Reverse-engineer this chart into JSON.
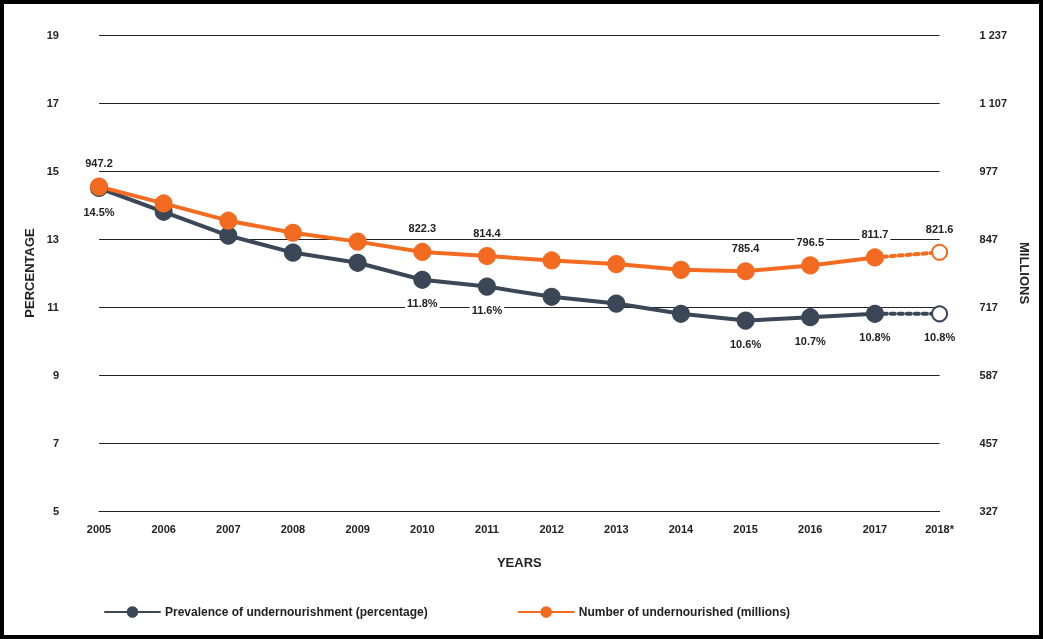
{
  "chart_data": {
    "type": "line",
    "xlabel": "YEARS",
    "ylabel": "PERCENTAGE",
    "y2label": "MILLIONS",
    "categories": [
      "2005",
      "2006",
      "2007",
      "2008",
      "2009",
      "2010",
      "2011",
      "2012",
      "2013",
      "2014",
      "2015",
      "2016",
      "2017",
      "2018*"
    ],
    "series": [
      {
        "name": "Prevalence of undernourishment (percentage)",
        "color": "#3b4657",
        "axis": "y",
        "values": [
          14.5,
          13.8,
          13.1,
          12.6,
          12.3,
          11.8,
          11.6,
          11.3,
          11.1,
          10.8,
          10.6,
          10.7,
          10.8,
          null
        ],
        "value_labels": [
          "14.5%",
          null,
          null,
          null,
          null,
          "11.8%",
          "11.6%",
          null,
          null,
          null,
          "10.6%",
          "10.7%",
          "10.8%",
          null
        ]
      },
      {
        "name": "Number of undernourished (millions)",
        "color": "#f26b21",
        "axis": "y2",
        "values": [
          947.2,
          915,
          882,
          859,
          842,
          822.3,
          814.4,
          806,
          799,
          788,
          785.4,
          796.5,
          811.7,
          null
        ],
        "value_labels": [
          "947.2",
          null,
          null,
          null,
          null,
          "822.3",
          "814.4",
          null,
          null,
          null,
          "785.4",
          "796.5",
          "811.7",
          null
        ]
      },
      {
        "color": "#3b4657",
        "axis": "y",
        "line_style": "dotted",
        "values": [
          null,
          null,
          null,
          null,
          null,
          null,
          null,
          null,
          null,
          null,
          null,
          null,
          10.8,
          10.8
        ],
        "value_labels": [
          null,
          null,
          null,
          null,
          null,
          null,
          null,
          null,
          null,
          null,
          null,
          null,
          null,
          "10.8%"
        ]
      },
      {
        "color": "#f26b21",
        "axis": "y2",
        "line_style": "dotted",
        "values": [
          null,
          null,
          null,
          null,
          null,
          null,
          null,
          null,
          null,
          null,
          null,
          null,
          811.7,
          821.6
        ],
        "value_labels": [
          null,
          null,
          null,
          null,
          null,
          null,
          null,
          null,
          null,
          null,
          null,
          null,
          null,
          "821.6"
        ]
      }
    ],
    "ylim": [
      5,
      19
    ],
    "yticks": [
      5,
      7,
      9,
      11,
      13,
      15,
      17,
      19
    ],
    "y2lim": [
      327,
      1237
    ],
    "y2ticks": [
      327,
      457,
      587,
      717,
      847,
      977,
      {
        "value": 1107,
        "label": "1 107"
      },
      {
        "value": 1237,
        "label": "1 237"
      }
    ],
    "grid": "y",
    "legend": "bottom left",
    "marker": "circle",
    "line_style": "solid"
  }
}
